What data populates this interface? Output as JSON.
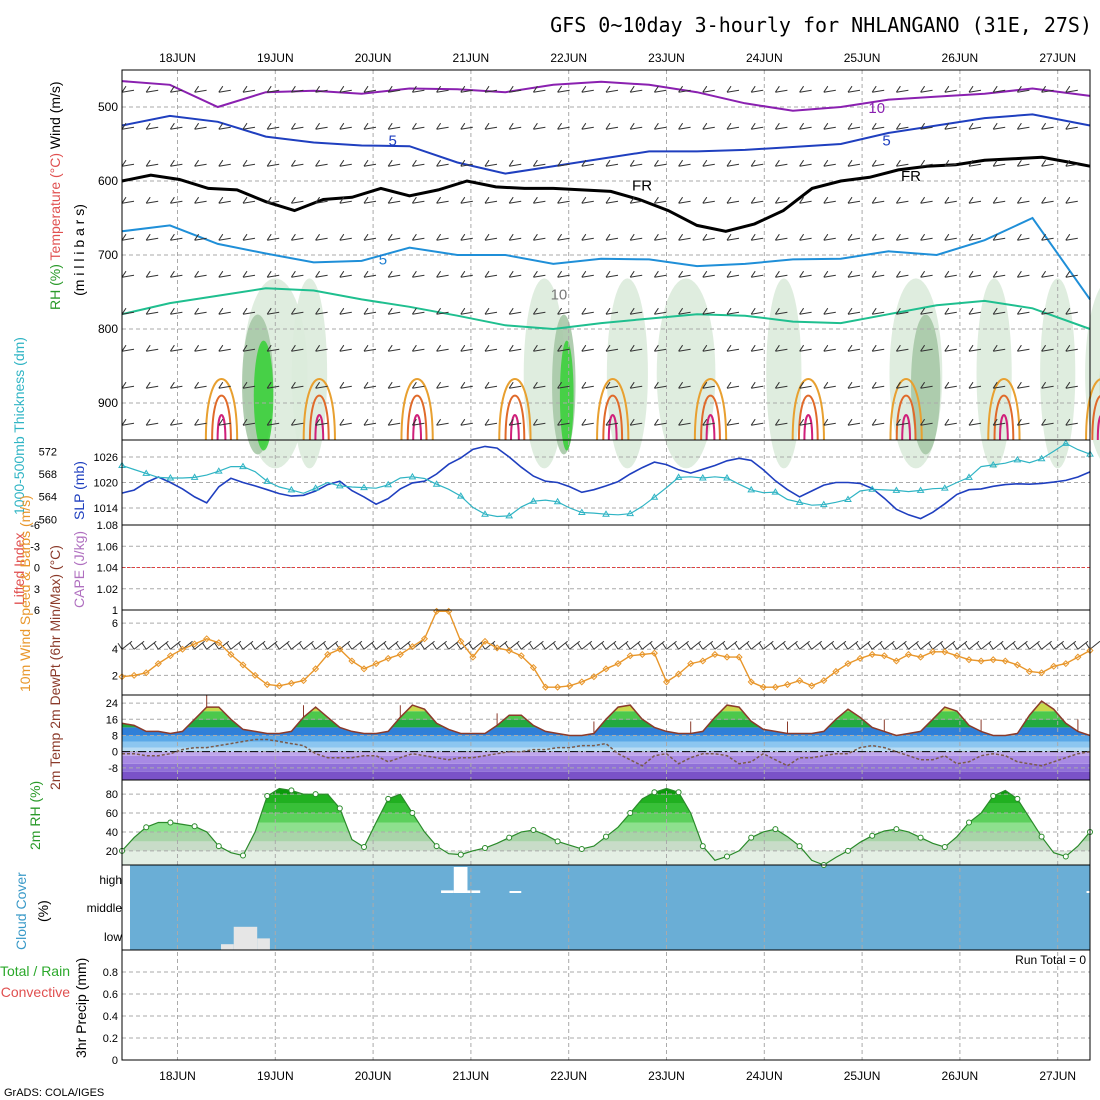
{
  "title": "GFS 0~10day 3-hourly for NHLANGANO (31E, 27S)",
  "credit": "GrADS: COLA/IGES",
  "colors": {
    "frame": "#000000",
    "grid": "#aaaaaa",
    "slp": "#1f3fbf",
    "thickness": "#2fb4c4",
    "wind10": "#e8962a",
    "temp": "#8b3a2a",
    "dewpt": "#7a5a4a",
    "rh2m": "#2a8a2a",
    "cloud_bg": "#6aaed6",
    "cloud_patch": "#e6e6e6",
    "zero_line": "#e04040"
  },
  "chart_data": [
    {
      "id": "upper-air",
      "type": "contour",
      "x_dates": [
        "18JUN",
        "19JUN",
        "20JUN",
        "21JUN",
        "22JUN",
        "23JUN",
        "24JUN",
        "25JUN",
        "26JUN",
        "27JUN"
      ],
      "y_ticks": [
        500,
        600,
        700,
        800,
        900
      ],
      "ylabel": "(m i l l i b a r s)",
      "ylim": [
        450,
        950
      ],
      "legend": [
        "Wind (m/s)",
        "Temperature (°C)",
        "RH (%)"
      ],
      "contour_labels": [
        {
          "text": "10",
          "day": 7.15,
          "p": 508,
          "color": "#8a20b0"
        },
        {
          "text": "5",
          "day": 2.2,
          "p": 552,
          "color": "#1f3fbf"
        },
        {
          "text": "5",
          "day": 7.25,
          "p": 552,
          "color": "#1f3fbf"
        },
        {
          "text": "FR",
          "day": 4.75,
          "p": 613,
          "color": "#000000"
        },
        {
          "text": "FR",
          "day": 7.5,
          "p": 600,
          "color": "#000000"
        },
        {
          "text": "5",
          "day": 2.1,
          "p": 713,
          "color": "#1f7fd0"
        },
        {
          "text": "10",
          "day": 3.9,
          "p": 760,
          "color": "#7a7a7a"
        }
      ],
      "isolines": [
        {
          "name": "500mb-purple",
          "color": "#8a20b0",
          "width": 2,
          "x": [
            0,
            0.5,
            1,
            1.5,
            2,
            2.5,
            3,
            3.5,
            4,
            4.5,
            5,
            5.5,
            6,
            6.5,
            7,
            7.5,
            8,
            8.5,
            9,
            9.5,
            10.1
          ],
          "p": [
            465,
            470,
            500,
            480,
            478,
            482,
            475,
            476,
            480,
            470,
            466,
            470,
            480,
            495,
            505,
            500,
            490,
            486,
            482,
            475,
            485
          ]
        },
        {
          "name": "5C-blue",
          "color": "#1f3fbf",
          "width": 2,
          "x": [
            0,
            0.5,
            1,
            1.5,
            2,
            2.5,
            3,
            3.5,
            4,
            4.5,
            5,
            5.5,
            6,
            6.5,
            7,
            7.5,
            8,
            8.5,
            9,
            9.5,
            10.1
          ],
          "p": [
            525,
            512,
            520,
            540,
            548,
            552,
            553,
            575,
            590,
            580,
            570,
            560,
            560,
            558,
            554,
            550,
            535,
            525,
            515,
            510,
            525
          ]
        },
        {
          "name": "freezing-level",
          "color": "#000000",
          "width": 3,
          "x": [
            0,
            0.3,
            0.6,
            0.9,
            1.2,
            1.5,
            1.8,
            2.1,
            2.4,
            2.7,
            3,
            3.3,
            3.6,
            3.9,
            4.2,
            4.5,
            4.8,
            5.1,
            5.4,
            5.7,
            6,
            6.3,
            6.6,
            6.9,
            7.2,
            7.5,
            7.8,
            8.1,
            8.4,
            8.7,
            9,
            9.3,
            9.6,
            9.9,
            10.1
          ],
          "p": [
            600,
            592,
            598,
            610,
            612,
            628,
            640,
            625,
            622,
            610,
            620,
            612,
            600,
            608,
            610,
            610,
            612,
            614,
            625,
            640,
            660,
            668,
            658,
            640,
            610,
            600,
            595,
            585,
            580,
            578,
            572,
            570,
            568,
            575,
            580
          ]
        },
        {
          "name": "5C-lightblue",
          "color": "#1f8fd8",
          "width": 2,
          "x": [
            0,
            0.5,
            1,
            1.5,
            2,
            2.5,
            3,
            3.5,
            4,
            4.5,
            5,
            5.5,
            6,
            6.5,
            7,
            7.5,
            8,
            8.5,
            9,
            9.5,
            10.1
          ],
          "p": [
            668,
            660,
            685,
            698,
            710,
            708,
            690,
            700,
            700,
            712,
            705,
            706,
            715,
            712,
            706,
            705,
            695,
            700,
            680,
            650,
            760
          ]
        },
        {
          "name": "RH-teal",
          "color": "#1fbf8f",
          "width": 2,
          "x": [
            0,
            0.5,
            1,
            1.5,
            2,
            2.5,
            3,
            3.5,
            4,
            4.5,
            5,
            5.5,
            6,
            6.5,
            7,
            7.5,
            8,
            8.5,
            9,
            9.5,
            10.1
          ],
          "p": [
            780,
            765,
            755,
            745,
            748,
            760,
            770,
            782,
            795,
            800,
            792,
            786,
            780,
            782,
            790,
            792,
            780,
            768,
            762,
            772,
            800
          ]
        }
      ]
    },
    {
      "id": "slp-thickness",
      "type": "line",
      "ylabel_left": "1000-500mb Thickness (dm)",
      "ylabel_right": "SLP (mb)",
      "y_ticks_left": [
        560,
        564,
        568,
        572
      ],
      "y_ticks_right": [
        1014,
        1020,
        1026
      ],
      "ylim_left": [
        559,
        574
      ],
      "ylim_right": [
        1010,
        1030
      ],
      "series": [
        {
          "name": "SLP",
          "axis": "right",
          "color": "#1f3fbf",
          "values": [
            1017.5,
            1018.2,
            1020,
            1021.3,
            1020,
            1018.5,
            1016.6,
            1015.2,
            1019,
            1021,
            1020,
            1019.2,
            1018.3,
            1017.4,
            1016.8,
            1017,
            1018,
            1019.5,
            1020.3,
            1018.1,
            1016.6,
            1014.9,
            1016.2,
            1018.5,
            1019.9,
            1020.3,
            1022,
            1024.3,
            1025.8,
            1027.8,
            1028.5,
            1028.1,
            1026,
            1023.6,
            1021.5,
            1020.3,
            1020,
            1019,
            1017.7,
            1018.3,
            1019.2,
            1020.2,
            1022,
            1023.5,
            1024.8,
            1024.2,
            1023,
            1022.2,
            1023.1,
            1024,
            1025.1,
            1025.7,
            1025.2,
            1023,
            1020.4,
            1018.3,
            1016.6,
            1018,
            1019.4,
            1020,
            1020,
            1019.8,
            1018.6,
            1016.3,
            1013.7,
            1012.4,
            1011.5,
            1013,
            1015,
            1017.2,
            1018.3,
            1018.5,
            1019.1,
            1019.5,
            1019.7,
            1019.6,
            1019.8,
            1020.1,
            1020.5,
            1021.3,
            1022.5
          ]
        },
        {
          "name": "Thickness",
          "axis": "left",
          "color": "#2fb4c4",
          "values": [
            569.5,
            568.8,
            568.1,
            567.4,
            567.3,
            567.3,
            567.4,
            567.8,
            568.5,
            569.3,
            569.3,
            568.4,
            566.7,
            565.7,
            565.2,
            564.6,
            565.5,
            566.5,
            565.9,
            565.7,
            565.6,
            565.5,
            566.1,
            567.3,
            567.5,
            567.2,
            566.2,
            565.3,
            564.1,
            562.1,
            560.9,
            560.5,
            560.6,
            562.2,
            563.2,
            563.4,
            563.1,
            562,
            561.2,
            561.1,
            560.9,
            560.8,
            561,
            562.3,
            563.9,
            565.6,
            567.4,
            567.5,
            567.3,
            567.5,
            567.3,
            566.2,
            565.2,
            564.7,
            564.8,
            563.5,
            563,
            562.5,
            562.6,
            563,
            563.5,
            565,
            565.3,
            565.2,
            565.1,
            564.9,
            565.1,
            565.4,
            565.5,
            566.5,
            567.4,
            569.3,
            569.6,
            569.9,
            570.5,
            570,
            570.7,
            572,
            573.4,
            572.3,
            571.5
          ]
        }
      ]
    },
    {
      "id": "li-cape",
      "type": "line",
      "ylabel_left": "Lifted Index",
      "ylabel_right": "CAPE (J/kg)",
      "y_ticks_left": [
        "-6",
        "-3",
        "0",
        "3",
        "6"
      ],
      "y_ticks_right": [
        "1",
        "1.02",
        "1.04",
        "1.06",
        "1.08"
      ],
      "ylim_right": [
        1,
        1.08
      ],
      "series": [
        {
          "name": "Lifted Index",
          "color": "#e04040",
          "values": [
            0,
            0
          ]
        }
      ]
    },
    {
      "id": "wind10m",
      "type": "line",
      "ylabel": "10m Wind Speed & Barbs (m/s)",
      "y_ticks": [
        2,
        4,
        6
      ],
      "ylim": [
        0.5,
        7
      ],
      "series": [
        {
          "name": "Speed",
          "color": "#e8962a",
          "values": [
            1.9,
            2,
            2.2,
            2.9,
            3.5,
            4,
            4.4,
            4.8,
            4.5,
            3.6,
            2.8,
            2,
            1.3,
            1.2,
            1.4,
            1.6,
            2.5,
            3.6,
            4,
            3.1,
            2.5,
            2.9,
            3.3,
            3.6,
            4.2,
            4.8,
            6.9,
            6.9,
            4.6,
            3.4,
            4.6,
            4.1,
            3.9,
            3.5,
            2.6,
            1.1,
            1.1,
            1.2,
            1.5,
            1.9,
            2.5,
            2.9,
            3.5,
            3.6,
            3.7,
            1.5,
            2.1,
            2.9,
            3.1,
            3.6,
            3.4,
            3.4,
            1.5,
            1.1,
            1.1,
            1.3,
            1.6,
            1.2,
            1.6,
            2.3,
            2.9,
            3.3,
            3.6,
            3.5,
            3.1,
            3.6,
            3.4,
            3.8,
            3.8,
            3.5,
            3.2,
            3.1,
            3.2,
            3.1,
            2.8,
            2.3,
            2.2,
            2.7,
            2.9,
            3.4,
            3.9
          ]
        }
      ]
    },
    {
      "id": "temp2m",
      "type": "area",
      "ylabel": "2m Temp 2m DewPt (6hr Min/Max) (°C)",
      "y_ticks": [
        -8,
        0,
        8,
        16,
        24
      ],
      "ylim": [
        -14,
        28
      ],
      "series": [
        {
          "name": "2m Temp",
          "color": "#8b3a2a",
          "values": [
            14,
            13,
            10,
            10,
            9,
            10,
            16,
            22,
            22,
            16,
            11,
            10,
            9,
            9,
            10,
            17,
            22,
            17,
            12,
            10,
            9,
            9,
            10,
            17,
            23,
            21,
            14,
            11,
            9,
            9,
            9,
            13,
            18,
            18,
            13,
            10,
            9,
            8,
            8,
            9,
            16,
            22,
            23,
            16,
            12,
            10,
            9,
            9,
            10,
            17,
            23,
            22,
            15,
            11,
            10,
            9,
            9,
            9,
            10,
            16,
            21,
            17,
            12,
            10,
            8,
            9,
            10,
            16,
            22,
            20,
            13,
            10,
            8,
            8,
            9,
            18,
            25,
            21,
            14,
            10,
            8
          ]
        },
        {
          "name": "2m DewPt",
          "color": "#7a5a4a",
          "values": [
            -1,
            -1,
            -2,
            -2,
            -1,
            1,
            2,
            2,
            3,
            4,
            5,
            6,
            6,
            5,
            4,
            3,
            -1,
            -3,
            -3,
            -3,
            -2,
            -2,
            -5,
            -3,
            -1,
            -2,
            -3,
            -4,
            -3,
            -3,
            -2,
            -1,
            0,
            0,
            1,
            1,
            2,
            2,
            3,
            3,
            4,
            -1,
            -4,
            -7,
            -2,
            -1,
            -6,
            -3,
            -1,
            -1,
            -2,
            -6,
            -5,
            -1,
            -4,
            -7,
            -3,
            -3,
            -2,
            -1,
            -1,
            2,
            3,
            2,
            0,
            -2,
            -4,
            -4,
            -2,
            -6,
            -5,
            -2,
            -1,
            -2,
            -5,
            -6,
            -7,
            -5,
            -3,
            -1,
            0
          ]
        }
      ]
    },
    {
      "id": "rh2m",
      "type": "area",
      "ylabel": "2m RH (%)",
      "y_ticks": [
        20,
        40,
        60,
        80
      ],
      "ylim": [
        5,
        95
      ],
      "series": [
        {
          "name": "2m RH",
          "color": "#2a8a2a",
          "values": [
            20,
            34,
            45,
            50,
            50,
            48,
            46,
            40,
            25,
            18,
            15,
            40,
            78,
            86,
            84,
            80,
            80,
            80,
            65,
            32,
            24,
            50,
            75,
            80,
            60,
            40,
            25,
            17,
            16,
            20,
            23,
            28,
            34,
            40,
            42,
            37,
            30,
            26,
            22,
            25,
            35,
            45,
            60,
            75,
            82,
            86,
            82,
            60,
            25,
            10,
            14,
            20,
            34,
            40,
            43,
            35,
            25,
            10,
            5,
            13,
            20,
            29,
            36,
            41,
            43,
            40,
            34,
            28,
            24,
            35,
            50,
            60,
            78,
            84,
            75,
            55,
            35,
            18,
            14,
            25,
            40
          ]
        }
      ]
    },
    {
      "id": "cloud",
      "type": "bar",
      "ylabel": "Cloud Cover (%)",
      "y_ticks": [
        "high",
        "middle",
        "low"
      ],
      "series": [
        {
          "name": "high",
          "segments": [
            [
              2.7,
              2.83,
              10
            ],
            [
              2.83,
              2.97,
              100
            ],
            [
              2.97,
              3.1,
              10
            ],
            [
              3.4,
              3.52,
              5
            ],
            [
              9.3,
              9.42,
              5
            ]
          ]
        },
        {
          "name": "middle",
          "segments": []
        },
        {
          "name": "low",
          "segments": [
            [
              0.45,
              0.58,
              20
            ],
            [
              0.58,
              0.82,
              80
            ],
            [
              0.82,
              0.95,
              40
            ]
          ]
        }
      ]
    },
    {
      "id": "precip",
      "type": "bar",
      "ylabel": "3hr Precip (mm)",
      "legend_left": [
        "Total / Rain",
        "Convective"
      ],
      "run_total": "Run Total = 0",
      "y_ticks": [
        "0",
        "0.2",
        "0.4",
        "0.6",
        "0.8"
      ],
      "ylim": [
        0,
        1
      ],
      "values": []
    }
  ]
}
